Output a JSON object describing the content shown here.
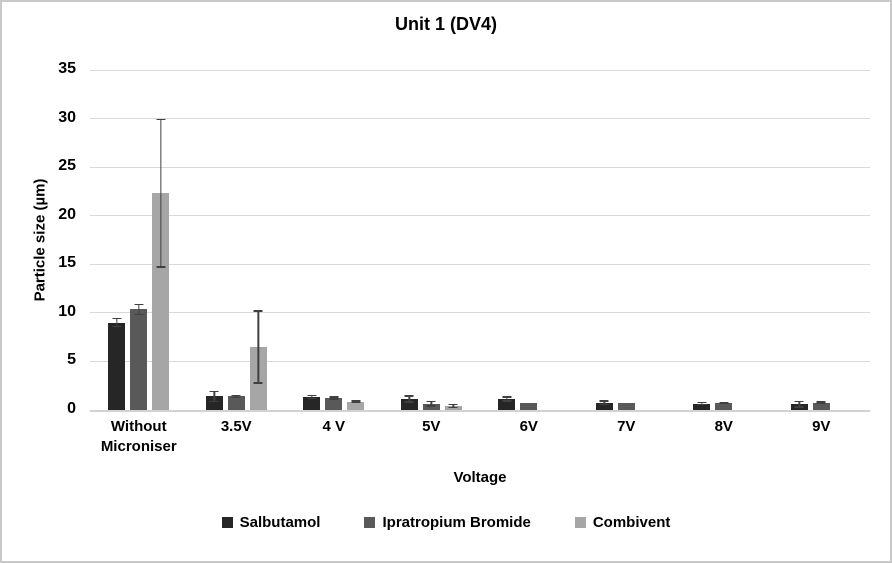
{
  "chart_data": {
    "type": "bar",
    "title": "Unit 1 (DV4)",
    "xlabel": "Voltage",
    "ylabel": "Particle size (µm)",
    "ylim": [
      0,
      35
    ],
    "ytick_step": 5,
    "yticks": [
      0,
      5,
      10,
      15,
      20,
      25,
      30,
      35
    ],
    "grid": true,
    "legend_position": "bottom",
    "error_bar_color": "#404040",
    "gridline_color": "#d9d9d9",
    "categories": [
      "Without Microniser",
      "3.5V",
      "4 V",
      "5V",
      "6V",
      "7V",
      "8V",
      "9V"
    ],
    "series": [
      {
        "name": "Salbutamol",
        "color": "#262626",
        "values": [
          9.0,
          1.4,
          1.35,
          1.15,
          1.15,
          0.75,
          0.65,
          0.6
        ],
        "errors": [
          0.4,
          0.5,
          0.15,
          0.3,
          0.2,
          0.2,
          0.1,
          0.3
        ]
      },
      {
        "name": "Ipratropium Bromide",
        "color": "#595959",
        "values": [
          10.35,
          1.4,
          1.25,
          0.65,
          0.7,
          0.72,
          0.72,
          0.75
        ],
        "errors": [
          0.5,
          0.1,
          0.1,
          0.25,
          0,
          0,
          0.05,
          0.05
        ]
      },
      {
        "name": "Combivent",
        "color": "#a6a6a6",
        "values": [
          22.3,
          6.5,
          0.85,
          0.4,
          0,
          0,
          0,
          0
        ],
        "errors": [
          7.6,
          3.7,
          0.1,
          0.15,
          0,
          0,
          0,
          0
        ]
      }
    ]
  }
}
